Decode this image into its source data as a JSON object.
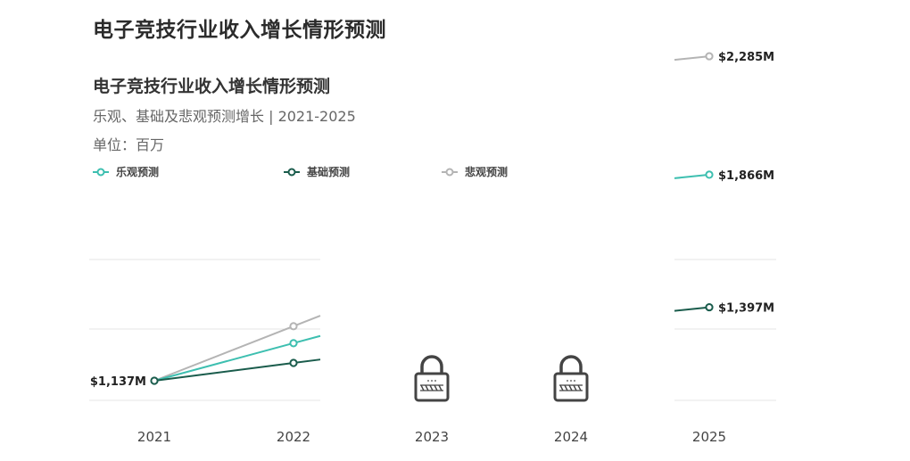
{
  "page_title": "电子竞技行业收入增长情形预测",
  "chart_data": {
    "type": "line",
    "title": "电子竞技行业收入增长情形预测",
    "subtitle": "乐观、基础及悲观预测增长 | 2021-2025",
    "unit": "单位：百万",
    "categories": [
      "2021",
      "2022",
      "2023",
      "2024",
      "2025"
    ],
    "series": [
      {
        "name": "乐观预测",
        "color": "#3dbfb0",
        "values": [
          1137,
          1270,
          null,
          null,
          1866
        ],
        "end_label": "$1,866M"
      },
      {
        "name": "基础预测",
        "color": "#1a5c4c",
        "values": [
          1137,
          1200,
          null,
          null,
          1397
        ],
        "end_label": "$1,397M"
      },
      {
        "name": "悲观预测",
        "color": "#b4b4b4",
        "values": [
          1137,
          1330,
          null,
          null,
          2285
        ],
        "end_label": "$2,285M"
      }
    ],
    "start_label": "$1,137M",
    "locked_categories": [
      "2023",
      "2024"
    ],
    "lock_icon": "padlock-icon",
    "ylim": [
      1000,
      2400
    ],
    "grid": true,
    "legend_position": "top-left"
  }
}
